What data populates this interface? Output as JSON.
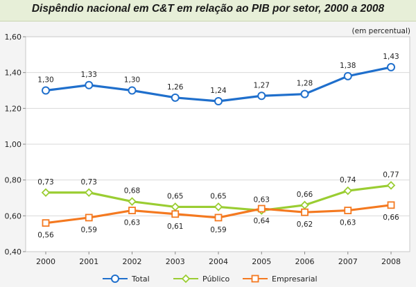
{
  "header": {
    "title": "Dispêndio nacional em C&T em relação ao PIB por setor, 2000 a 2008"
  },
  "chart_data": {
    "type": "line",
    "title": "Dispêndio nacional em C&T em relação ao PIB por setor, 2000 a 2008",
    "unit_note": "(em percentual)",
    "categories": [
      "2000",
      "2001",
      "2002",
      "2003",
      "2004",
      "2005",
      "2006",
      "2007",
      "2008"
    ],
    "ylim": [
      0.4,
      1.6
    ],
    "yticks": [
      0.4,
      0.6,
      0.8,
      1.0,
      1.2,
      1.4,
      1.6
    ],
    "ytick_labels": [
      "0,40",
      "0,60",
      "0,80",
      "1,00",
      "1,20",
      "1,40",
      "1,60"
    ],
    "grid": true,
    "legend_position": "bottom",
    "series": [
      {
        "name": "Total",
        "color": "#1f6fcc",
        "marker": "circle",
        "values": [
          1.3,
          1.33,
          1.3,
          1.26,
          1.24,
          1.27,
          1.28,
          1.38,
          1.43
        ],
        "labels": [
          "1,30",
          "1,33",
          "1,30",
          "1,26",
          "1,24",
          "1,27",
          "1,28",
          "1,38",
          "1,43"
        ],
        "label_side": "above"
      },
      {
        "name": "Público",
        "color": "#9acd32",
        "marker": "diamond",
        "values": [
          0.73,
          0.73,
          0.68,
          0.65,
          0.65,
          0.63,
          0.66,
          0.74,
          0.77
        ],
        "labels": [
          "0,73",
          "0,73",
          "0,68",
          "0,65",
          "0,65",
          "0,63",
          "0,66",
          "0,74",
          "0,77"
        ],
        "label_side": "above"
      },
      {
        "name": "Empresarial",
        "color": "#f47920",
        "marker": "square",
        "values": [
          0.56,
          0.59,
          0.63,
          0.61,
          0.59,
          0.64,
          0.62,
          0.63,
          0.66
        ],
        "labels": [
          "0,56",
          "0,59",
          "0,63",
          "0,61",
          "0,59",
          "0,64",
          "0,62",
          "0,63",
          "0,66"
        ],
        "label_side": "below"
      }
    ]
  }
}
